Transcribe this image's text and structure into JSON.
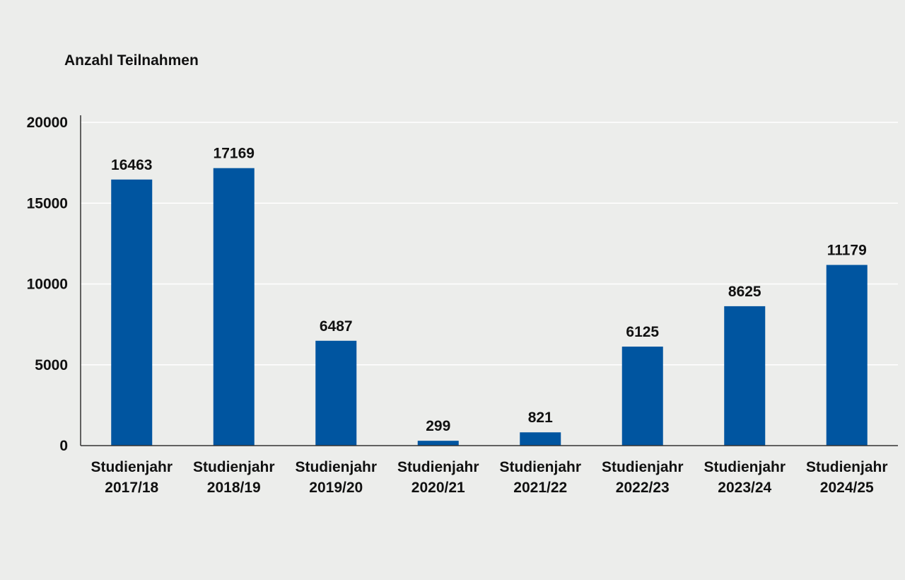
{
  "chart_data": {
    "type": "bar",
    "title": "",
    "ylabel": "Anzahl Teilnahmen",
    "xlabel": "",
    "ylim": [
      0,
      20000
    ],
    "yticks": [
      0,
      5000,
      10000,
      15000,
      20000
    ],
    "grid": true,
    "categories": [
      [
        "Studienjahr",
        "2017/18"
      ],
      [
        "Studienjahr",
        "2018/19"
      ],
      [
        "Studienjahr",
        "2019/20"
      ],
      [
        "Studienjahr",
        "2020/21"
      ],
      [
        "Studienjahr",
        "2021/22"
      ],
      [
        "Studienjahr",
        "2022/23"
      ],
      [
        "Studienjahr",
        "2023/24"
      ],
      [
        "Studienjahr",
        "2024/25"
      ]
    ],
    "values": [
      16463,
      17169,
      6487,
      299,
      821,
      6125,
      8625,
      11179
    ],
    "value_labels": [
      "16463",
      "17169",
      "6487",
      "299",
      "821",
      "6125",
      "8625",
      "11179"
    ],
    "colors": {
      "bar": "#0055a0",
      "grid": "#ffffff",
      "axis": "#333333",
      "background": "#ecedeb"
    }
  }
}
